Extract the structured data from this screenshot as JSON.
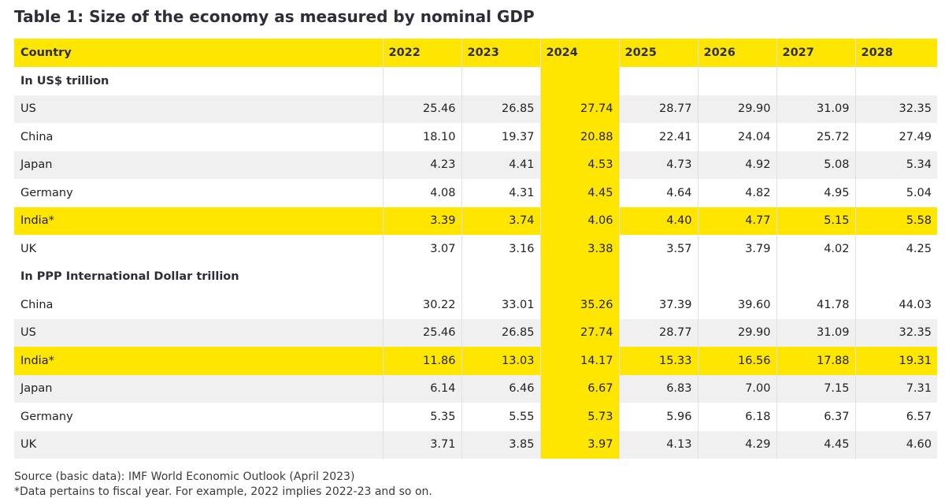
{
  "title": "Table 1: Size of the economy as measured by nominal GDP",
  "columns": [
    "Country",
    "2022",
    "2023",
    "2024",
    "2025",
    "2026",
    "2027",
    "2028"
  ],
  "sections": [
    {
      "label": "In US$ trillion",
      "rows": [
        {
          "country": "US",
          "values": [
            "25.46",
            "26.85",
            "27.74",
            "28.77",
            "29.90",
            "31.09",
            "32.35"
          ],
          "highlight": false
        },
        {
          "country": "China",
          "values": [
            "18.10",
            "19.37",
            "20.88",
            "22.41",
            "24.04",
            "25.72",
            "27.49"
          ],
          "highlight": false
        },
        {
          "country": "Japan",
          "values": [
            "4.23",
            "4.41",
            "4.53",
            "4.73",
            "4.92",
            "5.08",
            "5.34"
          ],
          "highlight": false
        },
        {
          "country": "Germany",
          "values": [
            "4.08",
            "4.31",
            "4.45",
            "4.64",
            "4.82",
            "4.95",
            "5.04"
          ],
          "highlight": false
        },
        {
          "country": "India*",
          "values": [
            "3.39",
            "3.74",
            "4.06",
            "4.40",
            "4.77",
            "5.15",
            "5.58"
          ],
          "highlight": true
        },
        {
          "country": "UK",
          "values": [
            "3.07",
            "3.16",
            "3.38",
            "3.57",
            "3.79",
            "4.02",
            "4.25"
          ],
          "highlight": false
        }
      ]
    },
    {
      "label": "In PPP International Dollar trillion",
      "rows": [
        {
          "country": "China",
          "values": [
            "30.22",
            "33.01",
            "35.26",
            "37.39",
            "39.60",
            "41.78",
            "44.03"
          ],
          "highlight": false
        },
        {
          "country": "US",
          "values": [
            "25.46",
            "26.85",
            "27.74",
            "28.77",
            "29.90",
            "31.09",
            "32.35"
          ],
          "highlight": false
        },
        {
          "country": "India*",
          "values": [
            "11.86",
            "13.03",
            "14.17",
            "15.33",
            "16.56",
            "17.88",
            "19.31"
          ],
          "highlight": true
        },
        {
          "country": "Japan",
          "values": [
            "6.14",
            "6.46",
            "6.67",
            "6.83",
            "7.00",
            "7.15",
            "7.31"
          ],
          "highlight": false
        },
        {
          "country": "Germany",
          "values": [
            "5.35",
            "5.55",
            "5.73",
            "5.96",
            "6.18",
            "6.37",
            "6.57"
          ],
          "highlight": false
        },
        {
          "country": "UK",
          "values": [
            "3.71",
            "3.85",
            "3.97",
            "4.13",
            "4.29",
            "4.45",
            "4.60"
          ],
          "highlight": false
        }
      ]
    }
  ],
  "footer": {
    "source": "Source (basic data): IMF World Economic Outlook (April 2023)",
    "note": "*Data pertains to fiscal year. For example, 2022 implies 2022-23 and so on."
  },
  "colors": {
    "highlight": "#ffe600",
    "row_alt": "#f0f0f0",
    "title": "#2e2e38"
  }
}
